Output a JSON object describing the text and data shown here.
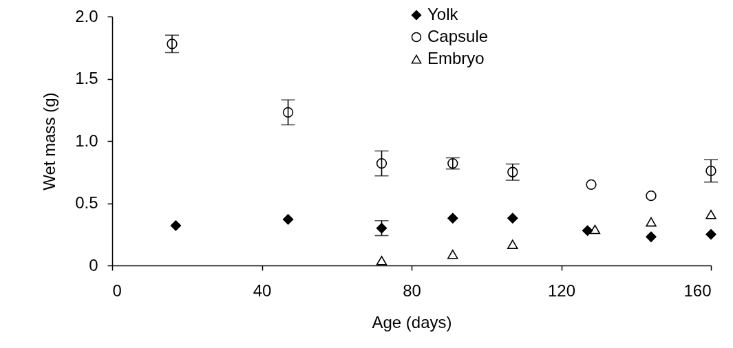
{
  "chart_data": {
    "type": "scatter",
    "xlabel": "Age (days)",
    "ylabel": "Wet mass (g)",
    "xlim": [
      0,
      160
    ],
    "xticks": [
      0,
      40,
      80,
      120,
      160
    ],
    "ylim": [
      0,
      2.0
    ],
    "yticks": [
      0,
      {
        "value": 0.5,
        "label": "0.5"
      },
      {
        "value": 1,
        "label": "1.0"
      },
      {
        "value": 1.5,
        "label": "1.5"
      },
      {
        "value": 2,
        "label": "2.0"
      }
    ],
    "legend": "top",
    "grid": false,
    "series": [
      {
        "name": "Yolk",
        "color": "#000000",
        "marker": "diamond",
        "x": [
          17,
          47,
          72,
          91,
          107,
          127,
          144,
          160
        ],
        "values": [
          0.32,
          0.37,
          0.3,
          0.38,
          0.38,
          0.28,
          0.23,
          0.25
        ],
        "errors": [
          null,
          null,
          0.06,
          null,
          null,
          null,
          null,
          null
        ]
      },
      {
        "name": "Capsule",
        "color": "#000000",
        "marker": "circle",
        "x": [
          16,
          47,
          72,
          91,
          107,
          128,
          144,
          160
        ],
        "values": [
          1.78,
          1.23,
          0.82,
          0.82,
          0.75,
          0.65,
          0.56,
          0.76
        ],
        "errors": [
          0.07,
          0.1,
          0.1,
          0.045,
          0.065,
          null,
          null,
          0.09
        ]
      },
      {
        "name": "Embryo",
        "color": "#000000",
        "marker": "triangle",
        "x": [
          72,
          91,
          107,
          129,
          144,
          160
        ],
        "values": [
          0.04,
          0.09,
          0.17,
          0.29,
          0.35,
          0.41
        ]
      }
    ]
  }
}
